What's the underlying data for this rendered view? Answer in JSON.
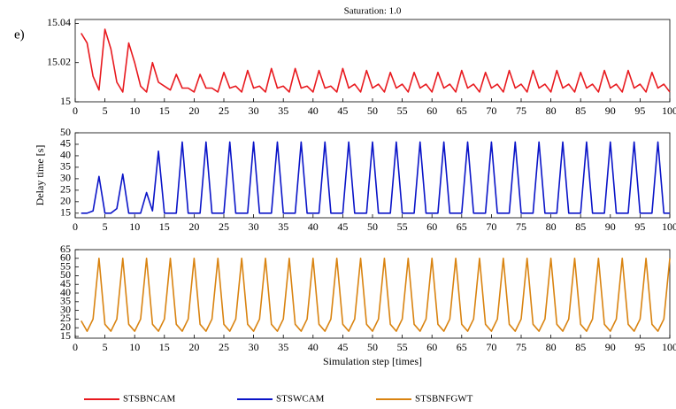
{
  "panel_label": "e)",
  "chart_data": [
    {
      "type": "line",
      "title": "Saturation: 1.0",
      "x": [
        1,
        2,
        3,
        4,
        5,
        6,
        7,
        8,
        9,
        10,
        11,
        12,
        13,
        14,
        15,
        16,
        17,
        18,
        19,
        20,
        21,
        22,
        23,
        24,
        25,
        26,
        27,
        28,
        29,
        30,
        31,
        32,
        33,
        34,
        35,
        36,
        37,
        38,
        39,
        40,
        41,
        42,
        43,
        44,
        45,
        46,
        47,
        48,
        49,
        50,
        51,
        52,
        53,
        54,
        55,
        56,
        57,
        58,
        59,
        60,
        61,
        62,
        63,
        64,
        65,
        66,
        67,
        68,
        69,
        70,
        71,
        72,
        73,
        74,
        75,
        76,
        77,
        78,
        79,
        80,
        81,
        82,
        83,
        84,
        85,
        86,
        87,
        88,
        89,
        90,
        91,
        92,
        93,
        94,
        95,
        96,
        97,
        98,
        99,
        100
      ],
      "series": [
        {
          "name": "STSBNCAM",
          "color": "#e8191e",
          "values": [
            15.035,
            15.03,
            15.013,
            15.006,
            15.037,
            15.027,
            15.01,
            15.005,
            15.03,
            15.02,
            15.008,
            15.005,
            15.02,
            15.01,
            15.008,
            15.006,
            15.014,
            15.007,
            15.007,
            15.005,
            15.014,
            15.007,
            15.007,
            15.005,
            15.015,
            15.007,
            15.008,
            15.005,
            15.016,
            15.007,
            15.008,
            15.005,
            15.017,
            15.007,
            15.008,
            15.005,
            15.017,
            15.007,
            15.008,
            15.005,
            15.016,
            15.007,
            15.008,
            15.005,
            15.017,
            15.007,
            15.009,
            15.005,
            15.016,
            15.007,
            15.009,
            15.005,
            15.015,
            15.007,
            15.009,
            15.005,
            15.015,
            15.007,
            15.009,
            15.005,
            15.015,
            15.007,
            15.009,
            15.005,
            15.016,
            15.007,
            15.009,
            15.005,
            15.015,
            15.007,
            15.009,
            15.005,
            15.016,
            15.007,
            15.009,
            15.005,
            15.016,
            15.007,
            15.009,
            15.005,
            15.016,
            15.007,
            15.009,
            15.005,
            15.015,
            15.007,
            15.009,
            15.005,
            15.016,
            15.007,
            15.009,
            15.005,
            15.016,
            15.007,
            15.009,
            15.005,
            15.015,
            15.007,
            15.009,
            15.005
          ]
        }
      ],
      "xlim": [
        0,
        100
      ],
      "xticks": [
        0,
        5,
        10,
        15,
        20,
        25,
        30,
        35,
        40,
        45,
        50,
        55,
        60,
        65,
        70,
        75,
        80,
        85,
        90,
        95,
        100
      ],
      "ylim": [
        15,
        15.042
      ],
      "yticks": [
        15,
        15.02,
        15.04
      ]
    },
    {
      "type": "line",
      "ylabel": "Delay time [s]",
      "x": [
        1,
        2,
        3,
        4,
        5,
        6,
        7,
        8,
        9,
        10,
        11,
        12,
        13,
        14,
        15,
        16,
        17,
        18,
        19,
        20,
        21,
        22,
        23,
        24,
        25,
        26,
        27,
        28,
        29,
        30,
        31,
        32,
        33,
        34,
        35,
        36,
        37,
        38,
        39,
        40,
        41,
        42,
        43,
        44,
        45,
        46,
        47,
        48,
        49,
        50,
        51,
        52,
        53,
        54,
        55,
        56,
        57,
        58,
        59,
        60,
        61,
        62,
        63,
        64,
        65,
        66,
        67,
        68,
        69,
        70,
        71,
        72,
        73,
        74,
        75,
        76,
        77,
        78,
        79,
        80,
        81,
        82,
        83,
        84,
        85,
        86,
        87,
        88,
        89,
        90,
        91,
        92,
        93,
        94,
        95,
        96,
        97,
        98,
        99,
        100
      ],
      "series": [
        {
          "name": "STSWCAM",
          "color": "#0a14c8",
          "values": [
            15,
            15,
            16,
            31,
            15,
            15,
            17,
            32,
            15,
            15,
            15,
            24,
            16,
            42,
            15,
            15,
            15,
            46,
            15,
            15,
            15,
            46,
            15,
            15,
            15,
            46,
            15,
            15,
            15,
            46,
            15,
            15,
            15,
            46,
            15,
            15,
            15,
            46,
            15,
            15,
            15,
            46,
            15,
            15,
            15,
            46,
            15,
            15,
            15,
            46,
            15,
            15,
            15,
            46,
            15,
            15,
            15,
            46,
            15,
            15,
            15,
            46,
            15,
            15,
            15,
            46,
            15,
            15,
            15,
            46,
            15,
            15,
            15,
            46,
            15,
            15,
            15,
            46,
            15,
            15,
            15,
            46,
            15,
            15,
            15,
            46,
            15,
            15,
            15,
            46,
            15,
            15,
            15,
            46,
            15,
            15,
            15,
            46,
            15,
            15
          ]
        }
      ],
      "xlim": [
        0,
        100
      ],
      "xticks": [
        0,
        5,
        10,
        15,
        20,
        25,
        30,
        35,
        40,
        45,
        50,
        55,
        60,
        65,
        70,
        75,
        80,
        85,
        90,
        95,
        100
      ],
      "ylim": [
        13,
        50
      ],
      "yticks": [
        15,
        20,
        25,
        30,
        35,
        40,
        45,
        50
      ]
    },
    {
      "type": "line",
      "xlabel": "Simulation step [times]",
      "x": [
        1,
        2,
        3,
        4,
        5,
        6,
        7,
        8,
        9,
        10,
        11,
        12,
        13,
        14,
        15,
        16,
        17,
        18,
        19,
        20,
        21,
        22,
        23,
        24,
        25,
        26,
        27,
        28,
        29,
        30,
        31,
        32,
        33,
        34,
        35,
        36,
        37,
        38,
        39,
        40,
        41,
        42,
        43,
        44,
        45,
        46,
        47,
        48,
        49,
        50,
        51,
        52,
        53,
        54,
        55,
        56,
        57,
        58,
        59,
        60,
        61,
        62,
        63,
        64,
        65,
        66,
        67,
        68,
        69,
        70,
        71,
        72,
        73,
        74,
        75,
        76,
        77,
        78,
        79,
        80,
        81,
        82,
        83,
        84,
        85,
        86,
        87,
        88,
        89,
        90,
        91,
        92,
        93,
        94,
        95,
        96,
        97,
        98,
        99,
        100
      ],
      "series": [
        {
          "name": "STSBNFGWT",
          "color": "#d98310",
          "values": [
            24,
            18,
            25,
            60,
            22,
            18,
            25,
            60,
            22,
            18,
            25,
            60,
            22,
            18,
            25,
            60,
            22,
            18,
            25,
            60,
            22,
            18,
            25,
            60,
            22,
            18,
            25,
            60,
            22,
            18,
            25,
            60,
            22,
            18,
            25,
            60,
            22,
            18,
            25,
            60,
            22,
            18,
            25,
            60,
            22,
            18,
            25,
            60,
            22,
            18,
            25,
            60,
            22,
            18,
            25,
            60,
            22,
            18,
            25,
            60,
            22,
            18,
            25,
            60,
            22,
            18,
            25,
            60,
            22,
            18,
            25,
            60,
            22,
            18,
            25,
            60,
            22,
            18,
            25,
            60,
            22,
            18,
            25,
            60,
            22,
            18,
            25,
            60,
            22,
            18,
            25,
            60,
            22,
            18,
            25,
            60,
            22,
            18,
            25,
            60
          ]
        }
      ],
      "xlim": [
        0,
        100
      ],
      "xticks": [
        0,
        5,
        10,
        15,
        20,
        25,
        30,
        35,
        40,
        45,
        50,
        55,
        60,
        65,
        70,
        75,
        80,
        85,
        90,
        95,
        100
      ],
      "ylim": [
        14,
        65
      ],
      "yticks": [
        15,
        20,
        25,
        30,
        35,
        40,
        45,
        50,
        55,
        60,
        65
      ]
    }
  ]
}
